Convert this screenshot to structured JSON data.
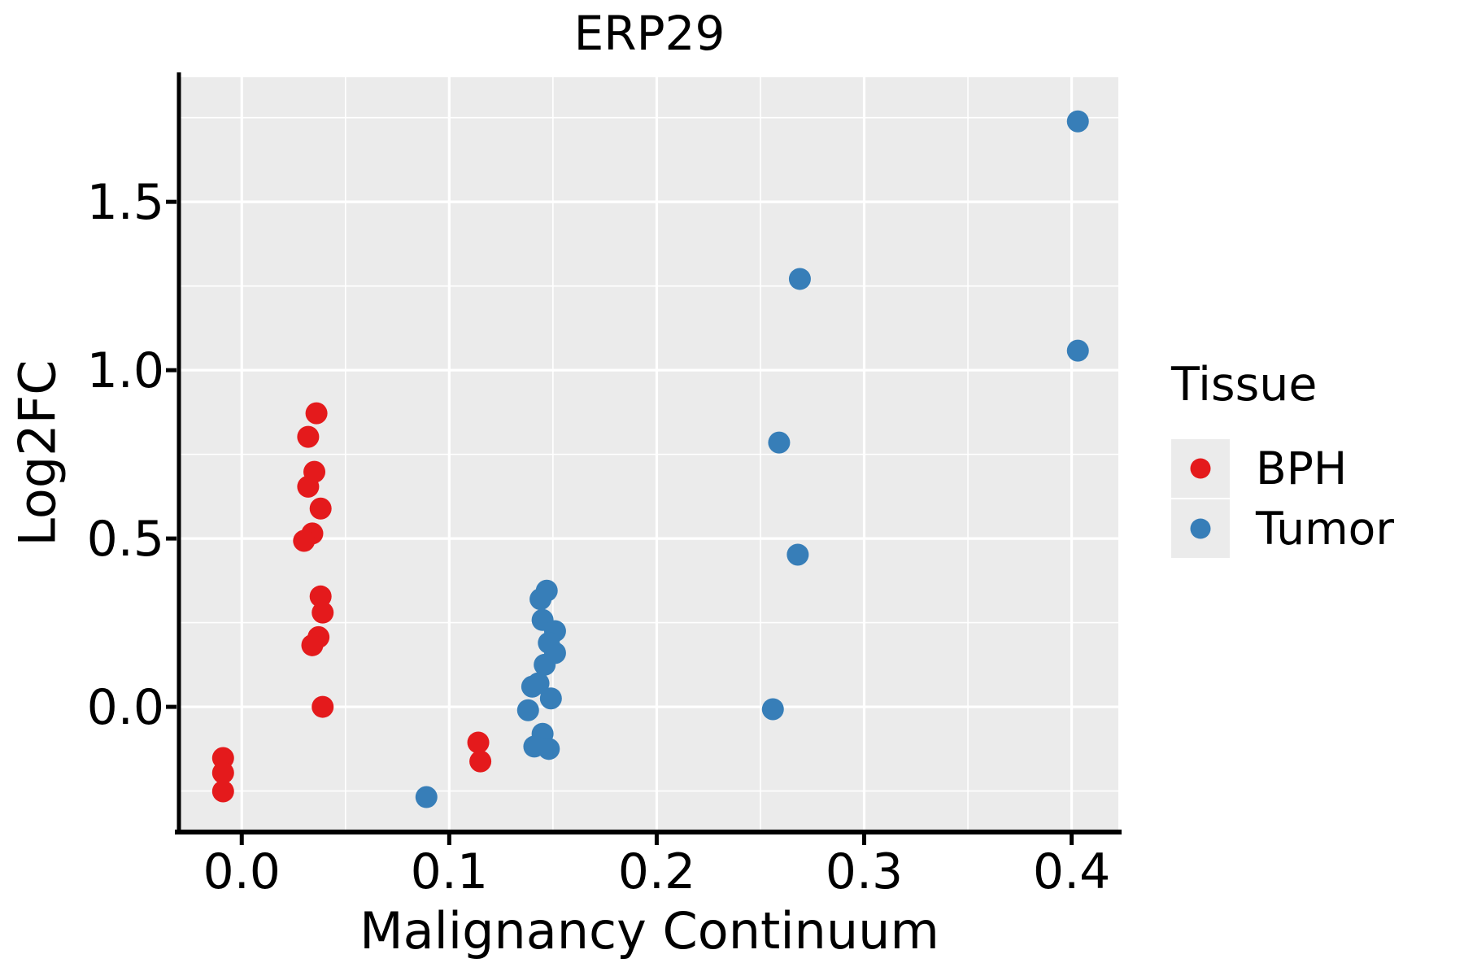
{
  "figure": {
    "title": "ERP29",
    "x_axis": {
      "label": "Malignancy Continuum",
      "tick_labels": [
        "0.0",
        "0.1",
        "0.2",
        "0.3",
        "0.4"
      ],
      "ticks": [
        0.0,
        0.1,
        0.2,
        0.3,
        0.4
      ]
    },
    "y_axis": {
      "label": "Log2FC",
      "tick_labels": [
        "0.0",
        "0.5",
        "1.0",
        "1.5"
      ],
      "ticks": [
        0.0,
        0.5,
        1.0,
        1.5
      ]
    },
    "legend": {
      "title": "Tissue",
      "items": [
        {
          "label": "BPH",
          "color": "#e41a1c"
        },
        {
          "label": "Tumor",
          "color": "#377eb8"
        }
      ]
    }
  },
  "style": {
    "panel_background": "#ebebeb",
    "gridline_color": "#ffffff",
    "spine_color": "#000000",
    "text_color": "#000000",
    "bph_color": "#e41a1c",
    "tumor_color": "#377eb8",
    "legend_key_background": "#ebebeb"
  },
  "chart_data": {
    "type": "scatter",
    "title": "ERP29",
    "xlabel": "Malignancy Continuum",
    "ylabel": "Log2FC",
    "xlim": [
      -0.0295,
      0.4225
    ],
    "ylim": [
      -0.367,
      1.87
    ],
    "x_major_ticks": [
      0.0,
      0.1,
      0.2,
      0.3,
      0.4
    ],
    "y_major_ticks": [
      0.0,
      0.5,
      1.0,
      1.5
    ],
    "x_minor_step": 0.05,
    "y_minor_step": 0.25,
    "grid": true,
    "legend_position": "right",
    "legend_title": "Tissue",
    "series": [
      {
        "name": "BPH",
        "color": "#e41a1c",
        "points": [
          [
            -0.009,
            -0.152
          ],
          [
            -0.009,
            -0.196
          ],
          [
            -0.009,
            -0.251
          ],
          [
            0.036,
            0.872
          ],
          [
            0.032,
            0.802
          ],
          [
            0.035,
            0.698
          ],
          [
            0.032,
            0.654
          ],
          [
            0.038,
            0.589
          ],
          [
            0.034,
            0.515
          ],
          [
            0.03,
            0.493
          ],
          [
            0.038,
            0.328
          ],
          [
            0.039,
            0.28
          ],
          [
            0.037,
            0.207
          ],
          [
            0.034,
            0.183
          ],
          [
            0.039,
            0.0
          ],
          [
            0.114,
            -0.106
          ],
          [
            0.115,
            -0.162
          ]
        ]
      },
      {
        "name": "Tumor",
        "color": "#377eb8",
        "points": [
          [
            0.089,
            -0.268
          ],
          [
            0.147,
            0.345
          ],
          [
            0.144,
            0.32
          ],
          [
            0.145,
            0.258
          ],
          [
            0.151,
            0.225
          ],
          [
            0.148,
            0.19
          ],
          [
            0.151,
            0.16
          ],
          [
            0.146,
            0.125
          ],
          [
            0.143,
            0.07
          ],
          [
            0.14,
            0.06
          ],
          [
            0.149,
            0.025
          ],
          [
            0.138,
            -0.01
          ],
          [
            0.145,
            -0.08
          ],
          [
            0.141,
            -0.118
          ],
          [
            0.148,
            -0.125
          ],
          [
            0.256,
            -0.007
          ],
          [
            0.259,
            0.785
          ],
          [
            0.268,
            0.452
          ],
          [
            0.269,
            1.271
          ],
          [
            0.403,
            1.739
          ],
          [
            0.403,
            1.058
          ]
        ]
      }
    ]
  }
}
